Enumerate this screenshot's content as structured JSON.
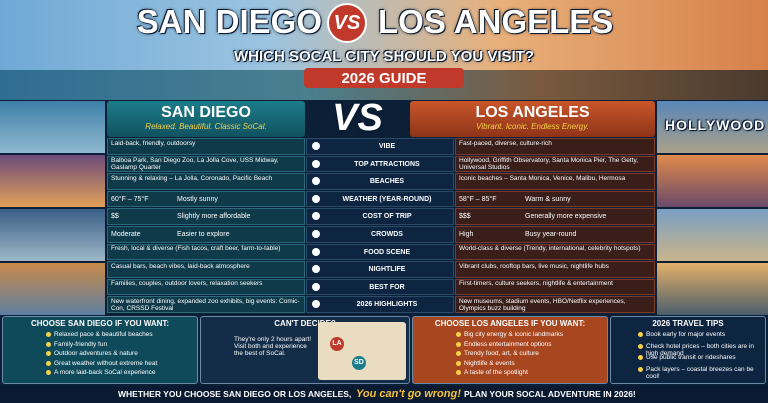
{
  "header": {
    "title_left": "SAN DIEGO",
    "title_vs": "VS",
    "title_right": "LOS ANGELES",
    "subtitle": "WHICH SOCAL CITY SHOULD YOU VISIT?",
    "badge": "2026 GUIDE",
    "sign": "HOLLYWOOD"
  },
  "columns": {
    "left": {
      "name": "SAN DIEGO",
      "tagline": "Relaxed. Beautiful. Classic SoCal."
    },
    "vs": "VS",
    "right": {
      "name": "LOS ANGELES",
      "tagline": "Vibrant. Iconic. Endless Energy."
    }
  },
  "rows": [
    {
      "category": "VIBE",
      "sd": "Laid-back, friendly, outdoorsy",
      "la": "Fast-paced, diverse, culture-rich"
    },
    {
      "category": "TOP ATTRACTIONS",
      "sd": "Balboa Park, San Diego Zoo, La Jolla Cove, USS Midway, Gaslamp Quarter",
      "la": "Hollywood, Griffith Observatory, Santa Monica Pier, The Getty, Universal Studios"
    },
    {
      "category": "BEACHES",
      "sd": "Stunning & relaxing – La Jolla, Coronado, Pacific Beach",
      "la": "Iconic beaches – Santa Monica, Venice, Malibu, Hermosa"
    },
    {
      "category": "WEATHER (YEAR-ROUND)",
      "sd": {
        "main": "60°F – 75°F",
        "side": "Mostly sunny"
      },
      "la": {
        "main": "58°F – 85°F",
        "side": "Warm & sunny"
      }
    },
    {
      "category": "COST OF TRIP",
      "sd": {
        "main": "$$",
        "side": "Slightly more affordable"
      },
      "la": {
        "main": "$$$",
        "side": "Generally more expensive"
      }
    },
    {
      "category": "CROWDS",
      "sd": {
        "main": "Moderate",
        "side": "Easier to explore"
      },
      "la": {
        "main": "High",
        "side": "Busy year-round"
      }
    },
    {
      "category": "FOOD SCENE",
      "sd": "Fresh, local & diverse (Fish tacos, craft beer, farm-to-table)",
      "la": "World-class & diverse (Trendy, international, celebrity hotspots)"
    },
    {
      "category": "NIGHTLIFE",
      "sd": "Casual bars, beach vibes, laid-back atmosphere",
      "la": "Vibrant clubs, rooftop bars, live music, nightlife hubs"
    },
    {
      "category": "BEST FOR",
      "sd": "Families, couples, outdoor lovers, relaxation seekers",
      "la": "First-timers, culture seekers, nightlife & entertainment"
    },
    {
      "category": "2026 HIGHLIGHTS",
      "sd": "New waterfront dining, expanded zoo exhibits, big events: Comic-Con, CRSSD Festival",
      "la": "New museums, stadium events, HBO/Netflix experiences, Olympics buzz building"
    }
  ],
  "boxes": {
    "sd": {
      "title": "CHOOSE SAN DIEGO IF YOU WANT:",
      "items": [
        "Relaxed pace & beautiful beaches",
        "Family-friendly fun",
        "Outdoor adventures & nature",
        "Great weather without extreme heat",
        "A more laid-back SoCal experience"
      ]
    },
    "decide": {
      "title": "CAN'T DECIDE?",
      "text": "They're only 2 hours apart! Visit both and experience the best of SoCal.",
      "map_la": "LA",
      "map_sd": "SD"
    },
    "la": {
      "title": "CHOOSE LOS ANGELES IF YOU WANT:",
      "items": [
        "Big city energy & iconic landmarks",
        "Endless entertainment options",
        "Trendy food, art, & culture",
        "Nightlife & events",
        "A taste of the spotlight"
      ]
    },
    "tips": {
      "title": "2026 TRAVEL TIPS",
      "items": [
        "Book early for major events",
        "Check hotel prices – both cities are in high demand",
        "Use public transit or rideshares",
        "Pack layers – coastal breezes can be cool!"
      ]
    }
  },
  "footer": {
    "left": "WHETHER YOU CHOOSE SAN DIEGO OR LOS ANGELES,",
    "middle": "You can't go wrong!",
    "right": "PLAN YOUR SOCAL ADVENTURE IN 2026!"
  }
}
